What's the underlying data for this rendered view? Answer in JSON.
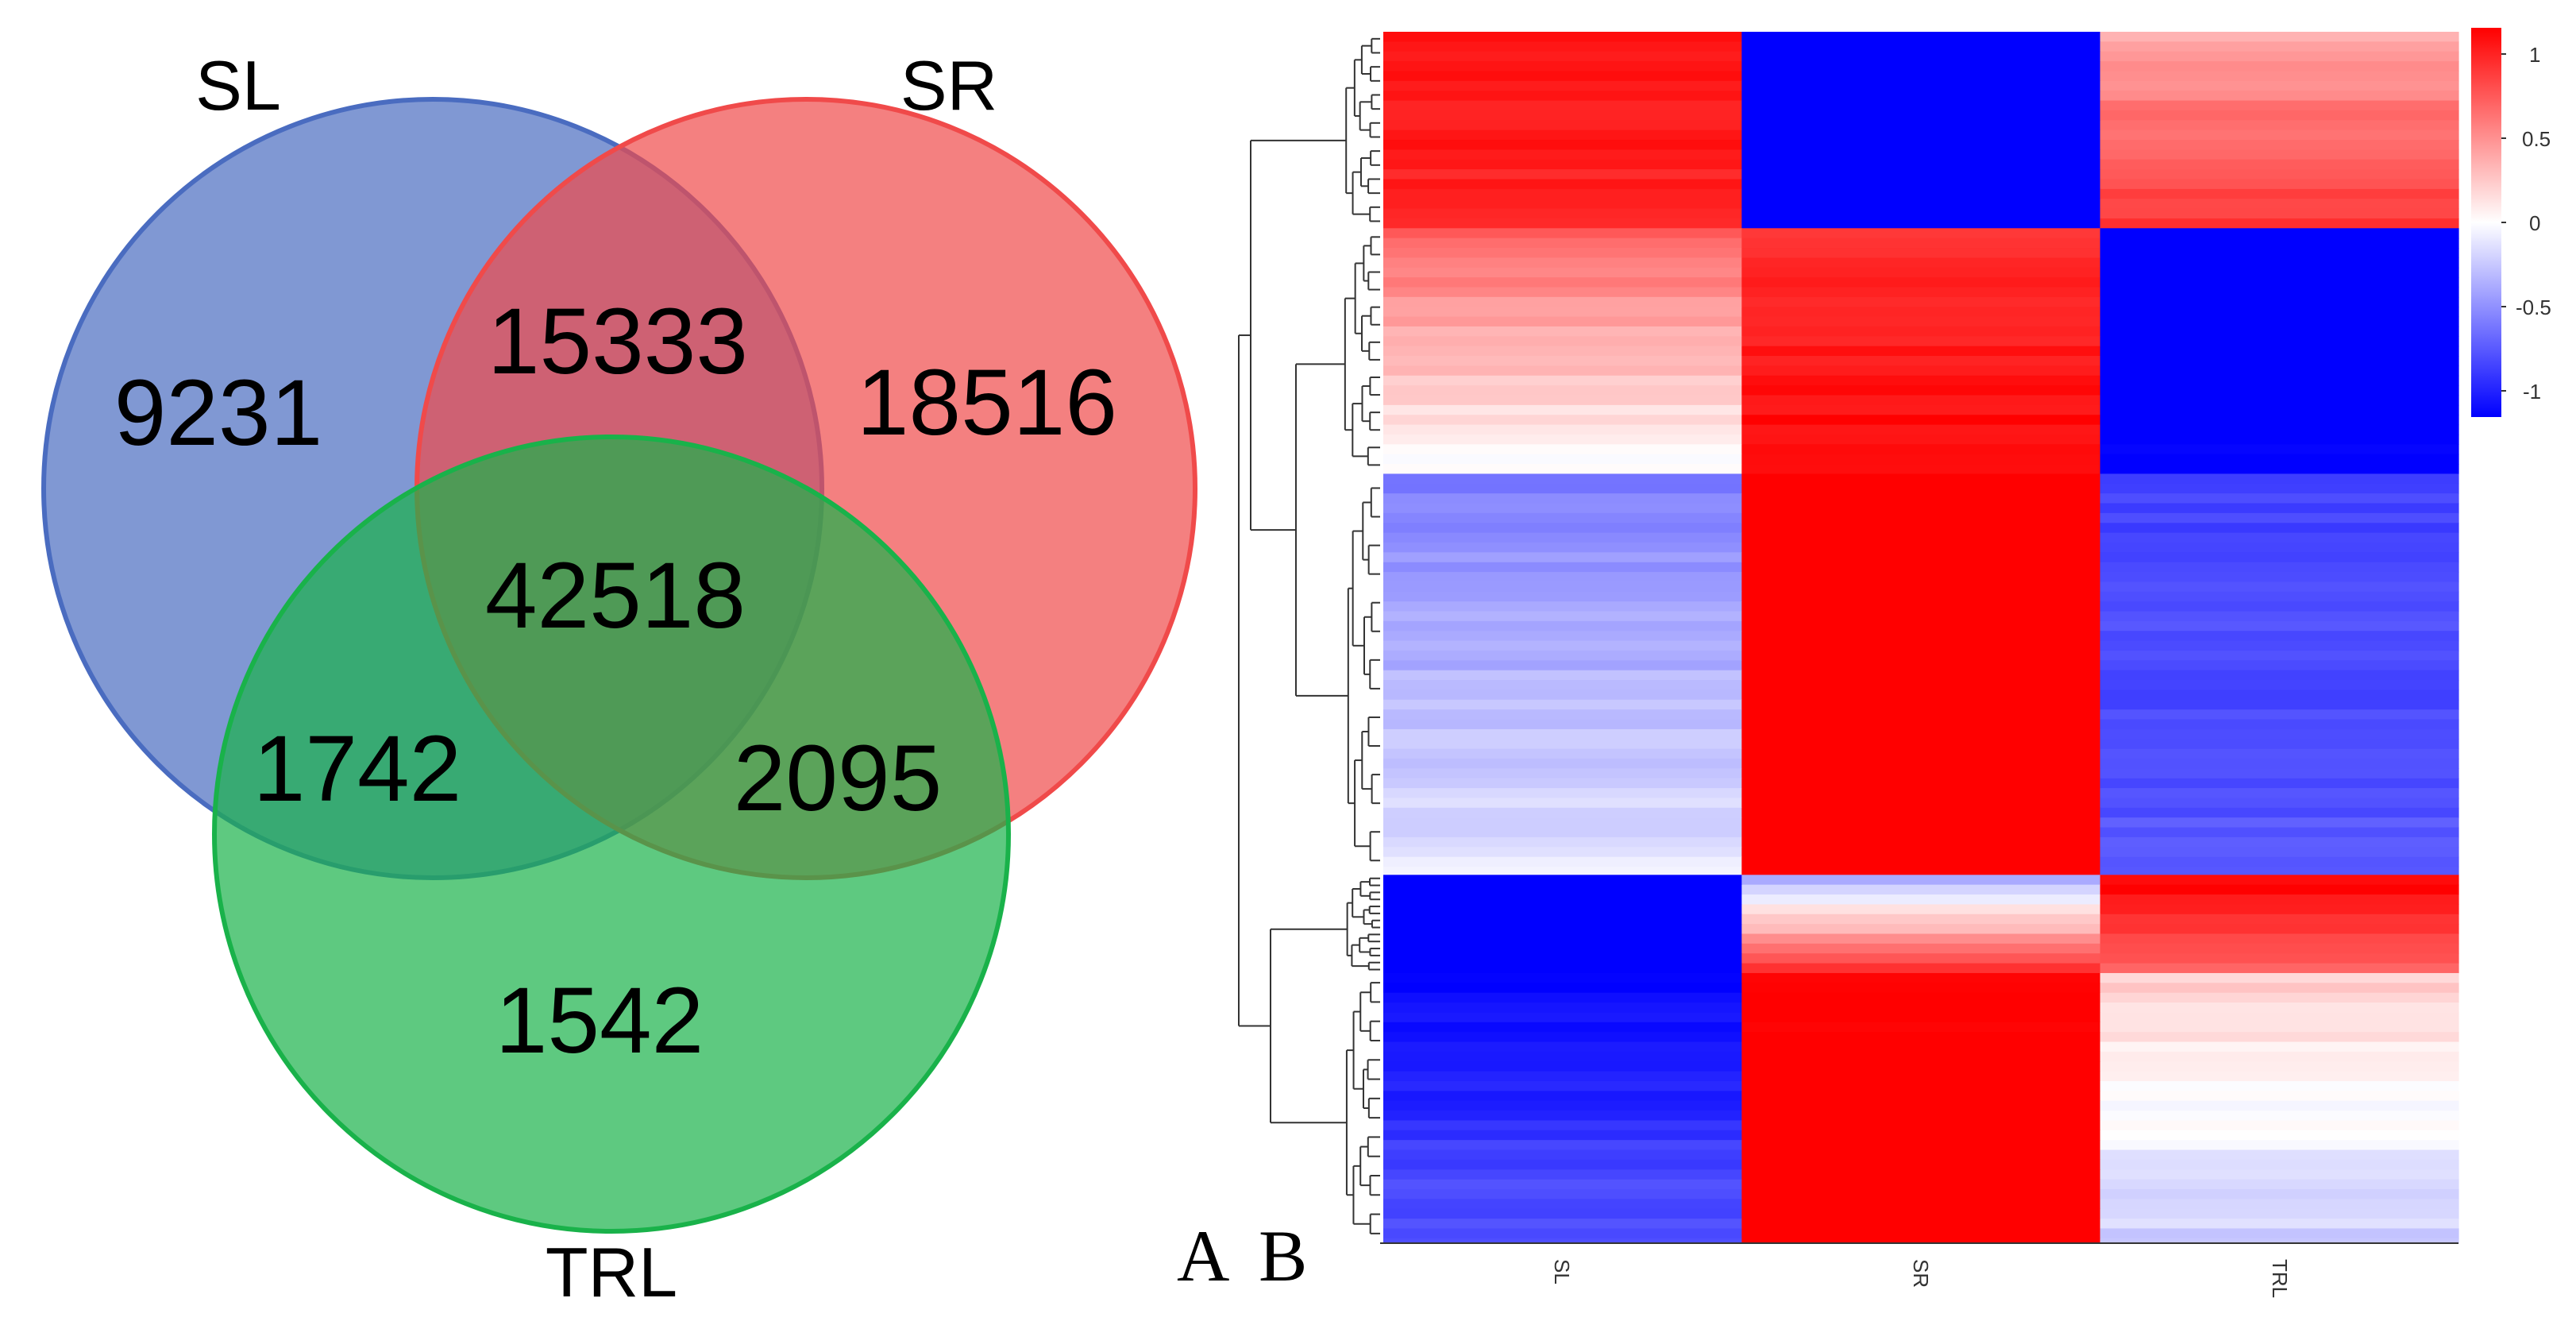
{
  "panels": {
    "a": "A",
    "b": "B"
  },
  "chart_data": [
    {
      "type": "venn",
      "sets": [
        {
          "name": "SL",
          "color": "#4a6cc0"
        },
        {
          "name": "SR",
          "color": "#f04a4a"
        },
        {
          "name": "TRL",
          "color": "#19b24a"
        }
      ],
      "regions": [
        {
          "id": "sl_only",
          "sets": [
            "SL"
          ],
          "value": 9231
        },
        {
          "id": "sr_only",
          "sets": [
            "SR"
          ],
          "value": 18516
        },
        {
          "id": "trl_only",
          "sets": [
            "TRL"
          ],
          "value": 1542
        },
        {
          "id": "sl_sr",
          "sets": [
            "SL",
            "SR"
          ],
          "value": 15333
        },
        {
          "id": "sl_trl",
          "sets": [
            "SL",
            "TRL"
          ],
          "value": 1742
        },
        {
          "id": "sr_trl",
          "sets": [
            "SR",
            "TRL"
          ],
          "value": 2095
        },
        {
          "id": "all",
          "sets": [
            "SL",
            "SR",
            "TRL"
          ],
          "value": 42518
        }
      ]
    },
    {
      "type": "heatmap",
      "columns": [
        "SL",
        "SR",
        "TRL"
      ],
      "colormap": {
        "low": "#0000ff",
        "mid": "#ffffff",
        "high": "#ff0000"
      },
      "colorbar": {
        "ticks": [
          1,
          0.5,
          0,
          -0.5,
          -1
        ],
        "tick_labels": [
          "1",
          "0.5",
          "0",
          "-0.5",
          "-1"
        ],
        "range": [
          -1.2,
          1.2
        ]
      },
      "dendrogram": "rows clustered (left)",
      "row_blocks": [
        {
          "rows": 120,
          "SL": [
            0.95,
            0.85
          ],
          "SR": [
            -1.2,
            -1.2
          ],
          "TRL": [
            0.35,
            0.8
          ]
        },
        {
          "rows": 150,
          "SL": [
            0.6,
            0.0
          ],
          "SR": [
            0.8,
            1.0
          ],
          "TRL": [
            -1.2,
            -1.0
          ]
        },
        {
          "rows": 245,
          "SL": [
            -0.5,
            -0.1
          ],
          "SR": [
            1.2,
            1.2
          ],
          "TRL": [
            -0.75,
            -0.65
          ]
        },
        {
          "rows": 60,
          "SL": [
            -1.2,
            -1.2
          ],
          "SR": [
            -0.3,
            0.8
          ],
          "TRL": [
            1.0,
            0.6
          ]
        },
        {
          "rows": 165,
          "SL": [
            -1.0,
            -0.65
          ],
          "SR": [
            1.0,
            1.2
          ],
          "TRL": [
            0.2,
            -0.2
          ]
        }
      ]
    }
  ]
}
